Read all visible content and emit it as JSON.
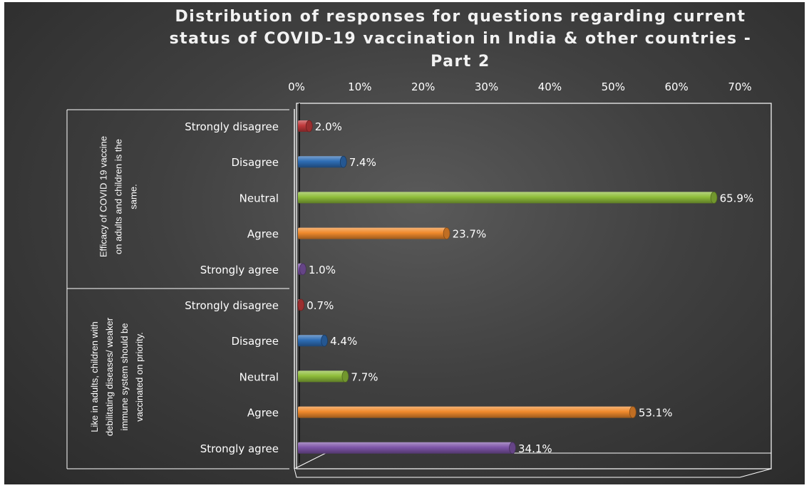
{
  "title_lines": [
    "Distribution of responses for questions regarding current",
    "status of COVID-19 vaccination in India & other countries -",
    "Part 2"
  ],
  "chart_data": {
    "type": "bar",
    "orientation": "horizontal",
    "title": "Distribution of responses for questions regarding current status of COVID-19 vaccination in India & other countries - Part 2",
    "xlim": [
      0,
      70
    ],
    "x_ticks": [
      "0%",
      "10%",
      "20%",
      "30%",
      "40%",
      "50%",
      "60%",
      "70%"
    ],
    "x_tick_values": [
      0,
      10,
      20,
      30,
      40,
      50,
      60,
      70
    ],
    "x_axis_position": "top",
    "colors": {
      "Strongly disagree": "#c0393b",
      "Disagree": "#2e6db5",
      "Neutral": "#8fbd3a",
      "Agree": "#f08a2c",
      "Strongly agree": "#7e55a8"
    },
    "groups": [
      {
        "label_lines": [
          "Efficacy of COVID 19 vaccine",
          "on adults and children is the",
          "same."
        ],
        "bars": [
          {
            "category": "Strongly disagree",
            "value": 2.0,
            "label": "2.0%"
          },
          {
            "category": "Disagree",
            "value": 7.4,
            "label": "7.4%"
          },
          {
            "category": "Neutral",
            "value": 65.9,
            "label": "65.9%"
          },
          {
            "category": "Agree",
            "value": 23.7,
            "label": "23.7%"
          },
          {
            "category": "Strongly agree",
            "value": 1.0,
            "label": "1.0%"
          }
        ]
      },
      {
        "label_lines": [
          "Like in adults, children with",
          "debilitating diseases/ weaker",
          "immune system should be",
          "vaccinated on priority."
        ],
        "bars": [
          {
            "category": "Strongly disagree",
            "value": 0.7,
            "label": "0.7%"
          },
          {
            "category": "Disagree",
            "value": 4.4,
            "label": "4.4%"
          },
          {
            "category": "Neutral",
            "value": 7.7,
            "label": "7.7%"
          },
          {
            "category": "Agree",
            "value": 53.1,
            "label": "53.1%"
          },
          {
            "category": "Strongly agree",
            "value": 34.1,
            "label": "34.1%"
          }
        ]
      }
    ]
  }
}
